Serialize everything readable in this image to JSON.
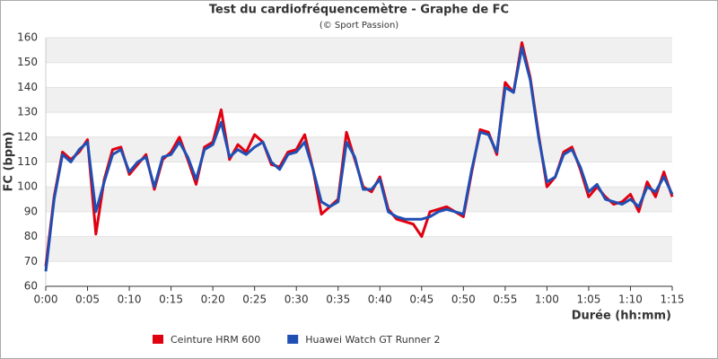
{
  "chart_data": {
    "type": "line",
    "title": "Test du cardiofréquencemètre - Graphe de FC",
    "subtitle": "(© Sport Passion)",
    "x_label": "Durée (hh:mm)",
    "y_label": "FC (bpm)",
    "x": [
      0,
      1,
      2,
      3,
      4,
      5,
      6,
      7,
      8,
      9,
      10,
      11,
      12,
      13,
      14,
      15,
      16,
      17,
      18,
      19,
      20,
      21,
      22,
      23,
      24,
      25,
      26,
      27,
      28,
      29,
      30,
      31,
      32,
      33,
      34,
      35,
      36,
      37,
      38,
      39,
      40,
      41,
      42,
      43,
      44,
      45,
      46,
      47,
      48,
      49,
      50,
      51,
      52,
      53,
      54,
      55,
      56,
      57,
      58,
      59,
      60,
      61,
      62,
      63,
      64,
      65,
      66,
      67,
      68,
      69,
      70,
      71,
      72,
      73,
      74,
      75
    ],
    "series": [
      {
        "name": "Ceinture HRM 600",
        "color": "#e00010",
        "values": [
          68,
          96,
          114,
          111,
          114,
          119,
          81,
          103,
          115,
          116,
          105,
          109,
          113,
          99,
          111,
          114,
          120,
          111,
          101,
          116,
          118,
          131,
          111,
          117,
          114,
          121,
          118,
          109,
          108,
          114,
          115,
          121,
          107,
          89,
          92,
          95,
          122,
          111,
          100,
          98,
          104,
          91,
          87,
          86,
          85,
          80,
          90,
          91,
          92,
          90,
          88,
          106,
          123,
          122,
          113,
          142,
          138,
          158,
          144,
          121,
          100,
          104,
          114,
          116,
          107,
          96,
          100,
          96,
          93,
          94,
          97,
          90,
          102,
          96,
          106,
          96
        ]
      },
      {
        "name": "Huawei Watch GT Runner 2",
        "color": "#1f4fb4",
        "values": [
          66,
          95,
          113,
          110,
          115,
          118,
          90,
          102,
          113,
          115,
          106,
          110,
          112,
          100,
          112,
          113,
          118,
          112,
          103,
          115,
          117,
          126,
          112,
          115,
          113,
          116,
          118,
          110,
          107,
          113,
          114,
          118,
          107,
          94,
          92,
          94,
          118,
          112,
          99,
          99,
          103,
          90,
          88,
          87,
          87,
          87,
          88,
          90,
          91,
          90,
          89,
          107,
          122,
          121,
          114,
          140,
          138,
          156,
          143,
          120,
          102,
          104,
          113,
          115,
          108,
          98,
          101,
          95,
          94,
          93,
          95,
          92,
          100,
          98,
          104,
          97
        ]
      }
    ],
    "xlim": [
      0,
      75
    ],
    "xticks": [
      {
        "value": 0,
        "label": "0:00"
      },
      {
        "value": 5,
        "label": "0:05"
      },
      {
        "value": 10,
        "label": "0:10"
      },
      {
        "value": 15,
        "label": "0:15"
      },
      {
        "value": 20,
        "label": "0:20"
      },
      {
        "value": 25,
        "label": "0:25"
      },
      {
        "value": 30,
        "label": "0:30"
      },
      {
        "value": 35,
        "label": "0:35"
      },
      {
        "value": 40,
        "label": "0:40"
      },
      {
        "value": 45,
        "label": "0:45"
      },
      {
        "value": 50,
        "label": "0:50"
      },
      {
        "value": 55,
        "label": "0:55"
      },
      {
        "value": 60,
        "label": "1:00"
      },
      {
        "value": 65,
        "label": "1:05"
      },
      {
        "value": 70,
        "label": "1:10"
      },
      {
        "value": 75,
        "label": "1:15"
      }
    ],
    "ylim": [
      60,
      160
    ],
    "yticks": [
      60,
      70,
      80,
      90,
      100,
      110,
      120,
      130,
      140,
      150,
      160
    ],
    "grid": true,
    "legend": "bottom"
  }
}
